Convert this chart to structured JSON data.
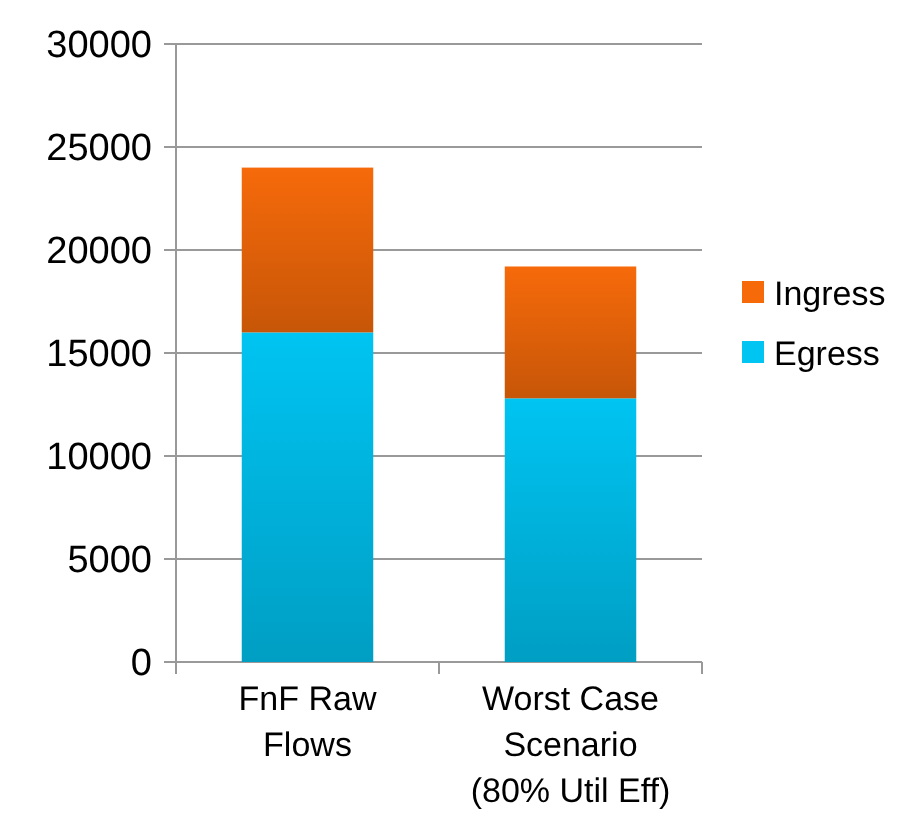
{
  "chart_data": {
    "type": "bar",
    "stacked": true,
    "categories": [
      "FnF Raw\nFlows",
      "Worst Case\nScenario\n(80% Util Eff)"
    ],
    "series": [
      {
        "name": "Egress",
        "color": "#00c4f2",
        "values": [
          16000,
          12800
        ]
      },
      {
        "name": "Ingress",
        "color": "#f66a0a",
        "values": [
          8000,
          6400
        ]
      }
    ],
    "ylim": [
      0,
      30000
    ],
    "yticks": [
      0,
      5000,
      10000,
      15000,
      20000,
      25000,
      30000
    ],
    "grid": "y",
    "legend": "right"
  }
}
